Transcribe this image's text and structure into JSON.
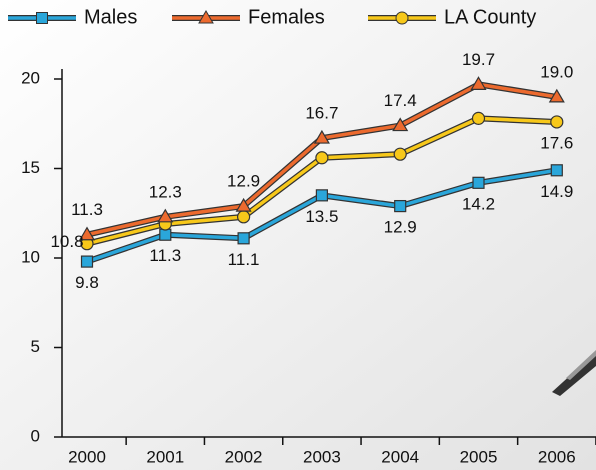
{
  "chart_data": {
    "type": "line",
    "categories": [
      "2000",
      "2001",
      "2002",
      "2003",
      "2004",
      "2005",
      "2006"
    ],
    "series": [
      {
        "name": "Males",
        "color": "#2aa6da",
        "marker": "square",
        "values": [
          9.8,
          11.3,
          11.1,
          13.5,
          12.9,
          14.2,
          14.9
        ]
      },
      {
        "name": "Females",
        "color": "#ec6a2e",
        "marker": "triangle",
        "values": [
          11.3,
          12.3,
          12.9,
          16.7,
          17.4,
          19.7,
          19.0
        ],
        "value_labels": [
          "11.3",
          "12.3",
          "12.9",
          "16.7",
          "17.4",
          "19.7",
          "19.0"
        ]
      },
      {
        "name": "LA County",
        "color": "#f7c81a",
        "marker": "circle",
        "values": [
          10.8,
          11.9,
          12.3,
          15.6,
          15.8,
          17.8,
          17.6
        ],
        "value_labels": [
          "10.8",
          null,
          null,
          null,
          null,
          null,
          "17.6"
        ]
      }
    ],
    "ylim": [
      0,
      20
    ],
    "yticks": [
      0,
      5,
      10,
      15,
      20
    ]
  }
}
